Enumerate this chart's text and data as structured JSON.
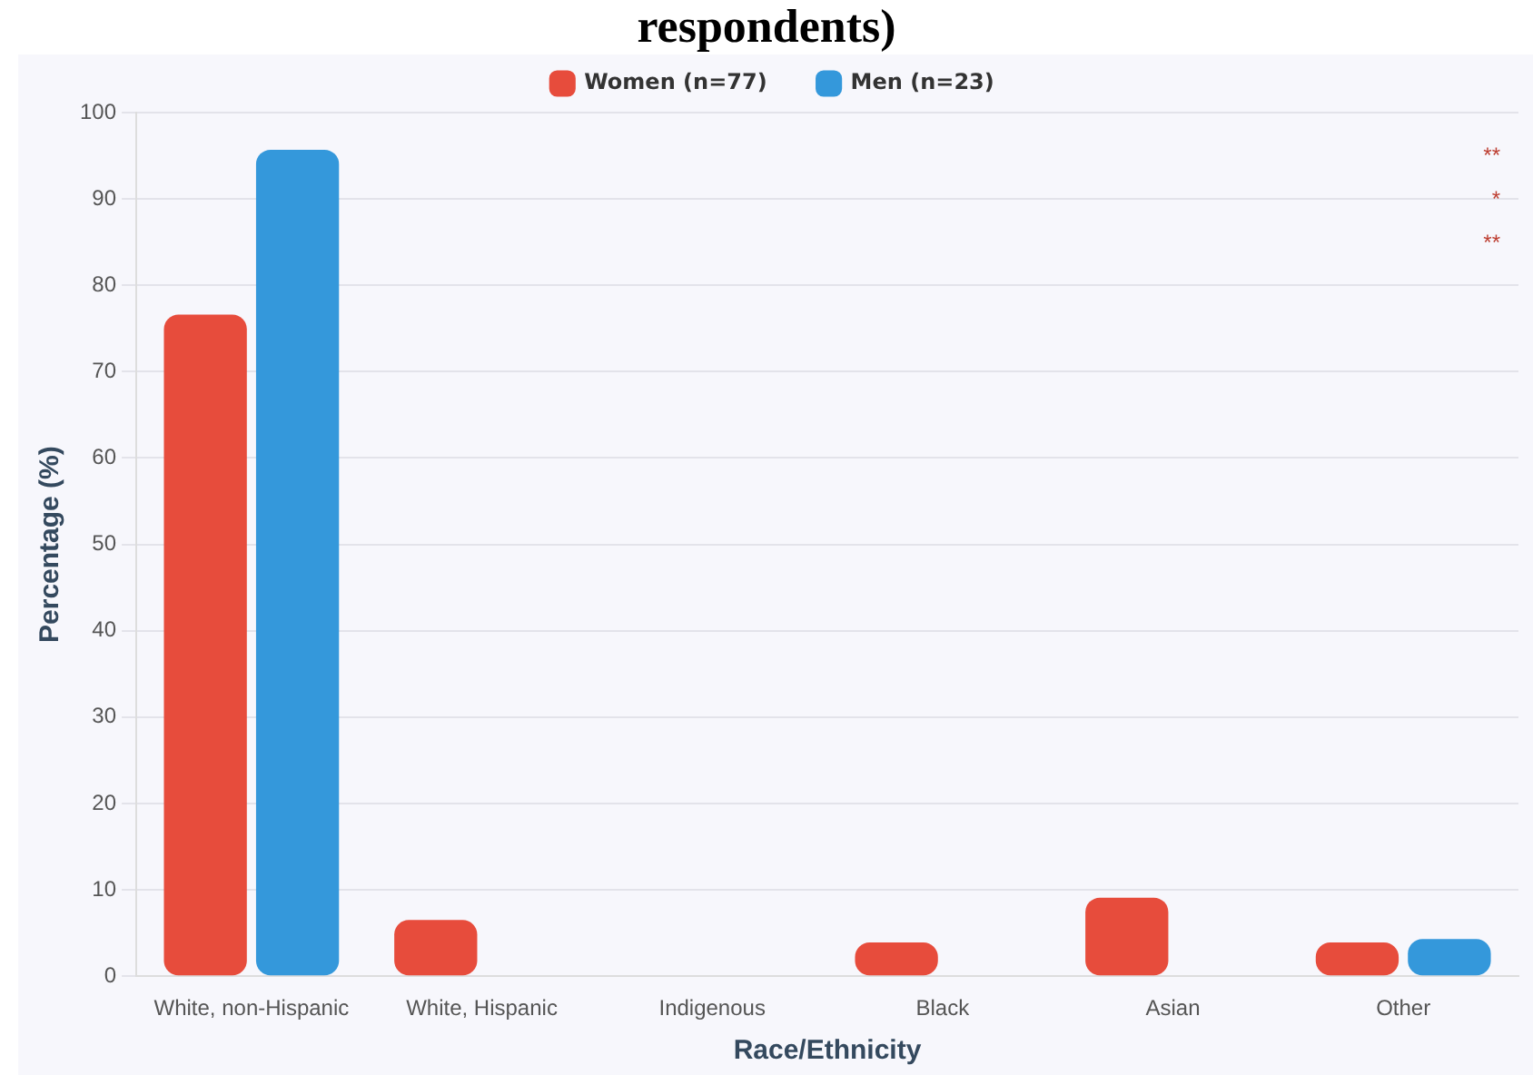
{
  "chart_data": {
    "type": "bar",
    "title": "respondents)",
    "xlabel": "Race/Ethnicity",
    "ylabel": "Percentage (%)",
    "categories": [
      "White, non-Hispanic",
      "White, Hispanic",
      "Indigenous",
      "Black",
      "Asian",
      "Other"
    ],
    "series": [
      {
        "name": "Women (n=77)",
        "color": "#e74c3c",
        "values": [
          76.6,
          6.5,
          0,
          3.9,
          9.1,
          3.9
        ]
      },
      {
        "name": "Men (n=23)",
        "color": "#3498db",
        "values": [
          95.7,
          0,
          0,
          0,
          0,
          4.3
        ]
      }
    ],
    "ylim": [
      0,
      100
    ],
    "yticks": [
      0,
      10,
      20,
      30,
      40,
      50,
      60,
      70,
      80,
      90,
      100
    ],
    "grid": "y",
    "legend": "top",
    "annotations": [
      "**",
      "*",
      "**"
    ]
  }
}
